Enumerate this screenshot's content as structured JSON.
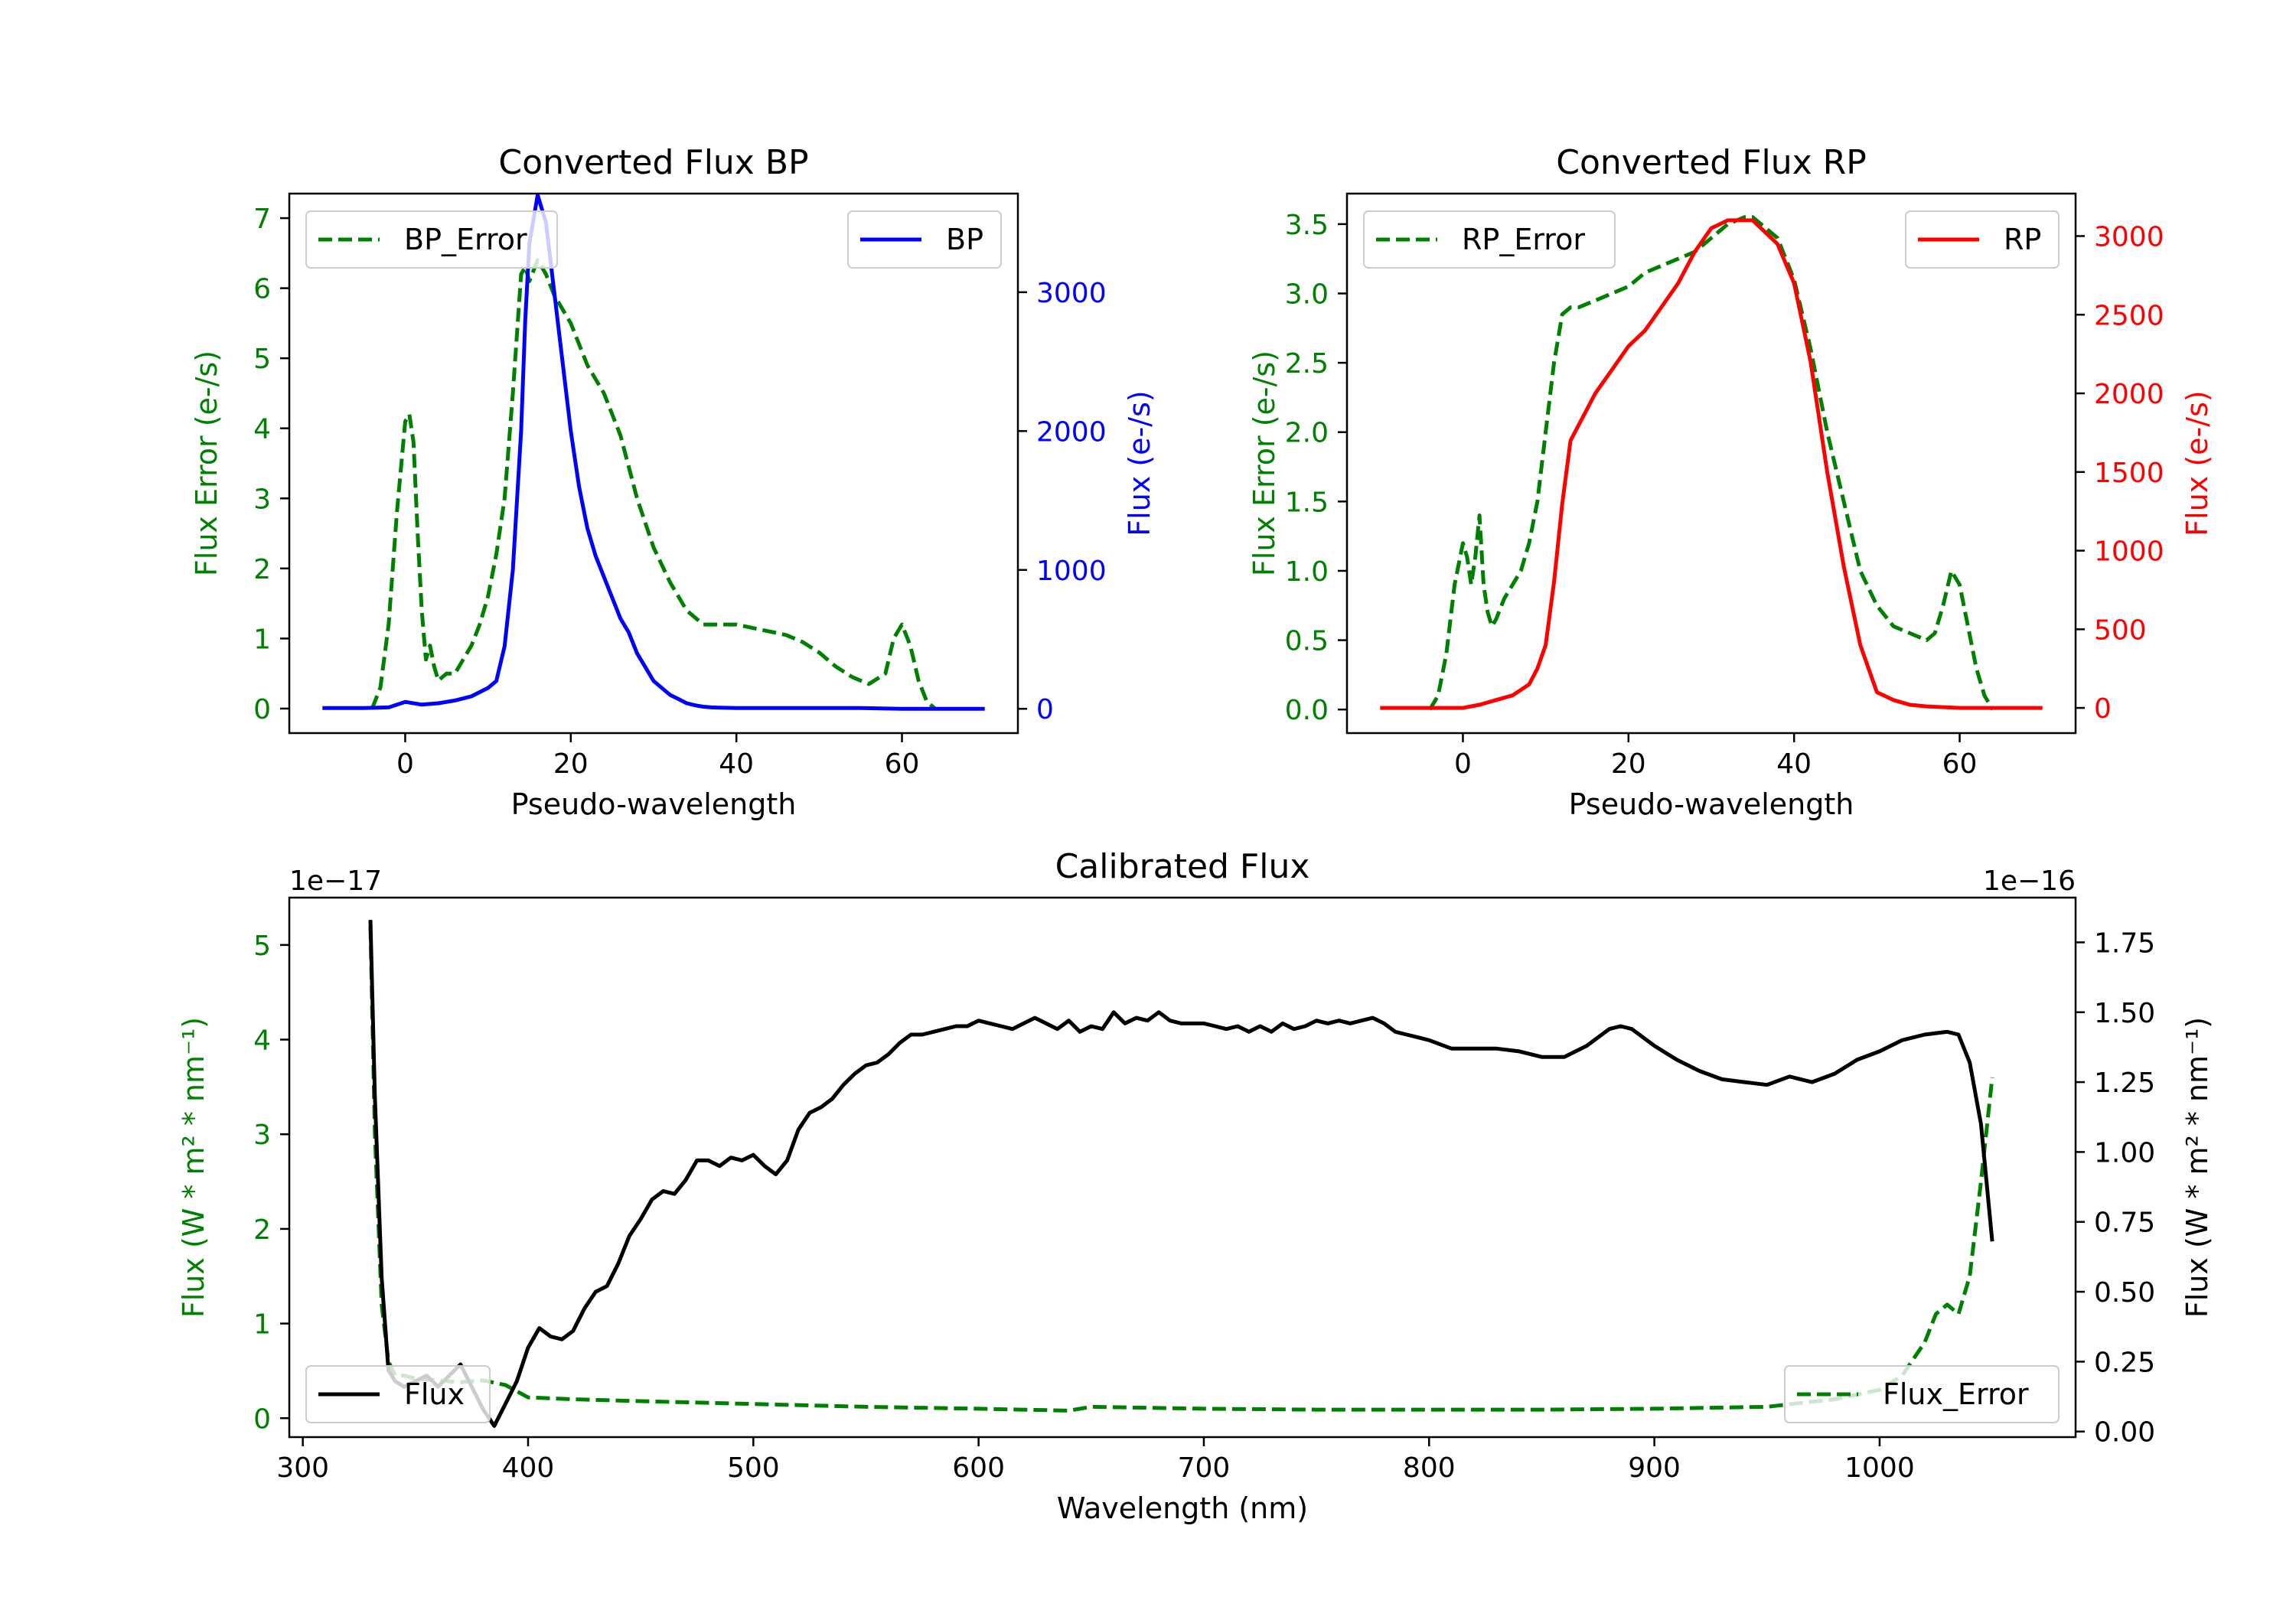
{
  "chart_data": [
    {
      "id": "bp",
      "type": "line",
      "title": "Converted Flux BP",
      "xlabel": "Pseudo-wavelength",
      "xlim": [
        -14,
        74
      ],
      "xticks": [
        0,
        20,
        40,
        60
      ],
      "left_axis": {
        "label": "Flux Error (e-/s)",
        "color": "#008000",
        "lim": [
          -0.35,
          7.35
        ],
        "ticks": [
          0,
          1,
          2,
          3,
          4,
          5,
          6,
          7
        ]
      },
      "right_axis": {
        "label": "Flux (e-/s)",
        "color": "#0000ff",
        "lim": [
          -175,
          3710
        ],
        "ticks": [
          0,
          1000,
          2000,
          3000
        ]
      },
      "series": [
        {
          "name": "BP_Error",
          "axis": "left",
          "color": "#008000",
          "style": "dashed",
          "x": [
            -4,
            -3,
            -2,
            -1,
            0,
            0.5,
            1,
            1.5,
            2,
            2.5,
            3,
            3.5,
            4,
            5,
            6,
            7,
            8,
            9,
            10,
            11,
            12,
            13,
            14,
            14.5,
            15,
            16,
            17,
            18,
            20,
            22,
            24,
            26,
            28,
            30,
            32,
            34,
            36,
            38,
            40,
            42,
            44,
            46,
            48,
            50,
            52,
            54,
            56,
            58,
            59,
            60,
            61,
            62,
            63,
            64
          ],
          "y": [
            0,
            0.3,
            1.2,
            2.8,
            4.1,
            4.2,
            3.8,
            2.5,
            1.4,
            0.7,
            0.9,
            0.6,
            0.4,
            0.5,
            0.5,
            0.7,
            0.9,
            1.2,
            1.6,
            2.2,
            3.0,
            4.5,
            6.2,
            6.3,
            6.1,
            6.4,
            6.2,
            5.9,
            5.5,
            4.9,
            4.5,
            3.9,
            3.0,
            2.3,
            1.8,
            1.4,
            1.2,
            1.2,
            1.2,
            1.15,
            1.1,
            1.05,
            0.95,
            0.8,
            0.6,
            0.45,
            0.35,
            0.5,
            1.0,
            1.2,
            0.9,
            0.4,
            0.1,
            0
          ]
        },
        {
          "name": "BP",
          "axis": "right",
          "color": "#0000ff",
          "style": "solid",
          "x": [
            -10,
            -5,
            -2,
            0,
            2,
            4,
            6,
            8,
            10,
            11,
            12,
            13,
            14,
            14.5,
            15,
            16,
            17,
            18,
            19,
            20,
            21,
            22,
            23,
            24,
            25,
            26,
            27,
            28,
            29,
            30,
            31,
            32,
            33,
            34,
            35,
            36,
            37,
            38,
            40,
            42,
            45,
            50,
            55,
            60,
            65,
            70
          ],
          "y": [
            5,
            5,
            10,
            50,
            30,
            40,
            60,
            90,
            150,
            200,
            450,
            1000,
            2000,
            2800,
            3350,
            3700,
            3500,
            3000,
            2500,
            2000,
            1600,
            1300,
            1100,
            950,
            800,
            650,
            550,
            400,
            300,
            200,
            150,
            100,
            70,
            40,
            25,
            15,
            10,
            8,
            5,
            5,
            5,
            5,
            5,
            0,
            0,
            0
          ]
        }
      ],
      "legend_left": "BP_Error",
      "legend_right": "BP"
    },
    {
      "id": "rp",
      "type": "line",
      "title": "Converted Flux RP",
      "xlabel": "Pseudo-wavelength",
      "xlim": [
        -14,
        74
      ],
      "xticks": [
        0,
        20,
        40,
        60
      ],
      "left_axis": {
        "label": "Flux Error (e-/s)",
        "color": "#008000",
        "lim": [
          -0.17,
          3.72
        ],
        "ticks": [
          0.0,
          0.5,
          1.0,
          1.5,
          2.0,
          2.5,
          3.0,
          3.5
        ]
      },
      "right_axis": {
        "label": "Flux (e-/s)",
        "color": "#ff0000",
        "lim": [
          -160,
          3270
        ],
        "ticks": [
          0,
          500,
          1000,
          1500,
          2000,
          2500,
          3000
        ]
      },
      "series": [
        {
          "name": "RP_Error",
          "axis": "left",
          "color": "#008000",
          "style": "dashed",
          "x": [
            -4,
            -3,
            -2,
            -1,
            0,
            0.5,
            1,
            1.5,
            2,
            2.5,
            3,
            3.5,
            4,
            5,
            6,
            7,
            8,
            9,
            10,
            11,
            12,
            13,
            14,
            16,
            18,
            20,
            22,
            24,
            26,
            28,
            30,
            32,
            34,
            35,
            36,
            38,
            40,
            42,
            44,
            46,
            48,
            50,
            52,
            54,
            56,
            57,
            58,
            59,
            60,
            61,
            62,
            63,
            64
          ],
          "y": [
            0,
            0.1,
            0.4,
            0.9,
            1.2,
            1.1,
            0.9,
            1.1,
            1.4,
            0.9,
            0.7,
            0.6,
            0.65,
            0.8,
            0.9,
            1.0,
            1.2,
            1.5,
            2.0,
            2.5,
            2.85,
            2.9,
            2.9,
            2.95,
            3.0,
            3.05,
            3.15,
            3.2,
            3.25,
            3.3,
            3.4,
            3.5,
            3.55,
            3.55,
            3.5,
            3.4,
            3.1,
            2.6,
            2.0,
            1.5,
            1.0,
            0.75,
            0.6,
            0.55,
            0.5,
            0.55,
            0.75,
            1.0,
            0.9,
            0.6,
            0.3,
            0.1,
            0
          ]
        },
        {
          "name": "RP",
          "axis": "right",
          "color": "#ff0000",
          "style": "solid",
          "x": [
            -10,
            -5,
            0,
            2,
            4,
            6,
            8,
            9,
            10,
            11,
            12,
            13,
            14,
            16,
            18,
            20,
            22,
            24,
            26,
            28,
            30,
            32,
            34,
            35,
            36,
            38,
            40,
            42,
            44,
            46,
            48,
            50,
            52,
            54,
            56,
            58,
            60,
            65,
            70
          ],
          "y": [
            0,
            0,
            0,
            20,
            50,
            80,
            150,
            250,
            400,
            800,
            1300,
            1700,
            1800,
            2000,
            2150,
            2300,
            2400,
            2550,
            2700,
            2900,
            3050,
            3100,
            3100,
            3100,
            3050,
            2950,
            2700,
            2200,
            1500,
            900,
            400,
            100,
            50,
            20,
            10,
            5,
            0,
            0,
            0
          ]
        }
      ],
      "legend_left": "RP_Error",
      "legend_right": "RP"
    },
    {
      "id": "cal",
      "type": "line",
      "title": "Calibrated Flux",
      "xlabel": "Wavelength (nm)",
      "xlim": [
        294,
        1087
      ],
      "xticks": [
        300,
        400,
        500,
        600,
        700,
        800,
        900,
        1000
      ],
      "left_axis": {
        "label": "Flux (W * m² * nm⁻¹)",
        "color": "#008000",
        "lim": [
          -0.2,
          5.5
        ],
        "ticks": [
          0,
          1,
          2,
          3,
          4,
          5
        ],
        "offset": "1e−17"
      },
      "right_axis": {
        "label": "Flux (W * m² * nm⁻¹)",
        "color": "#000000",
        "lim": [
          -0.02,
          1.91
        ],
        "ticks": [
          0.0,
          0.25,
          0.5,
          0.75,
          1.0,
          1.25,
          1.5,
          1.75
        ],
        "offset": "1e−16"
      },
      "series": [
        {
          "name": "Flux_Error",
          "axis": "left",
          "color": "#008000",
          "style": "dashed",
          "x": [
            330,
            332,
            335,
            338,
            341,
            345,
            350,
            360,
            370,
            380,
            390,
            400,
            420,
            450,
            500,
            550,
            600,
            640,
            650,
            700,
            750,
            800,
            850,
            900,
            950,
            980,
            1000,
            1010,
            1020,
            1025,
            1030,
            1035,
            1040,
            1045,
            1050
          ],
          "y": [
            5.2,
            3.0,
            1.2,
            0.6,
            0.45,
            0.45,
            0.42,
            0.4,
            0.38,
            0.4,
            0.35,
            0.22,
            0.2,
            0.18,
            0.15,
            0.12,
            0.1,
            0.08,
            0.12,
            0.1,
            0.09,
            0.09,
            0.09,
            0.1,
            0.12,
            0.2,
            0.3,
            0.45,
            0.8,
            1.1,
            1.2,
            1.1,
            1.5,
            2.5,
            3.6
          ]
        },
        {
          "name": "Flux",
          "axis": "right",
          "color": "#000000",
          "style": "solid",
          "x": [
            330,
            332,
            335,
            338,
            341,
            345,
            350,
            355,
            360,
            365,
            370,
            375,
            380,
            385,
            390,
            395,
            400,
            405,
            410,
            415,
            420,
            425,
            430,
            435,
            440,
            445,
            450,
            455,
            460,
            465,
            470,
            475,
            480,
            485,
            490,
            495,
            500,
            505,
            510,
            515,
            520,
            525,
            530,
            535,
            540,
            545,
            550,
            555,
            560,
            565,
            570,
            575,
            580,
            585,
            590,
            595,
            600,
            605,
            610,
            615,
            620,
            625,
            630,
            635,
            640,
            645,
            650,
            655,
            660,
            665,
            670,
            675,
            680,
            685,
            690,
            695,
            700,
            705,
            710,
            715,
            720,
            725,
            730,
            735,
            740,
            745,
            750,
            755,
            760,
            765,
            770,
            775,
            780,
            785,
            790,
            795,
            800,
            810,
            820,
            830,
            840,
            850,
            860,
            870,
            880,
            885,
            890,
            900,
            910,
            920,
            930,
            940,
            950,
            960,
            970,
            980,
            990,
            1000,
            1010,
            1020,
            1030,
            1035,
            1040,
            1045,
            1050
          ],
          "y": [
            1.83,
            1.2,
            0.55,
            0.22,
            0.18,
            0.16,
            0.18,
            0.2,
            0.16,
            0.2,
            0.24,
            0.16,
            0.08,
            0.02,
            0.1,
            0.18,
            0.3,
            0.37,
            0.34,
            0.33,
            0.36,
            0.44,
            0.5,
            0.52,
            0.6,
            0.7,
            0.76,
            0.83,
            0.86,
            0.85,
            0.9,
            0.97,
            0.97,
            0.95,
            0.98,
            0.97,
            0.99,
            0.95,
            0.92,
            0.97,
            1.08,
            1.14,
            1.16,
            1.19,
            1.24,
            1.28,
            1.31,
            1.32,
            1.35,
            1.39,
            1.42,
            1.42,
            1.43,
            1.44,
            1.45,
            1.45,
            1.47,
            1.46,
            1.45,
            1.44,
            1.46,
            1.48,
            1.46,
            1.44,
            1.47,
            1.43,
            1.45,
            1.44,
            1.5,
            1.46,
            1.48,
            1.47,
            1.5,
            1.47,
            1.46,
            1.46,
            1.46,
            1.45,
            1.44,
            1.45,
            1.43,
            1.45,
            1.43,
            1.46,
            1.44,
            1.45,
            1.47,
            1.46,
            1.47,
            1.46,
            1.47,
            1.48,
            1.46,
            1.43,
            1.42,
            1.41,
            1.4,
            1.37,
            1.37,
            1.37,
            1.36,
            1.34,
            1.34,
            1.38,
            1.44,
            1.45,
            1.44,
            1.38,
            1.33,
            1.29,
            1.26,
            1.25,
            1.24,
            1.27,
            1.25,
            1.28,
            1.33,
            1.36,
            1.4,
            1.42,
            1.43,
            1.42,
            1.32,
            1.1,
            0.68
          ]
        }
      ],
      "legend_left": "Flux",
      "legend_right": "Flux_Error"
    }
  ]
}
